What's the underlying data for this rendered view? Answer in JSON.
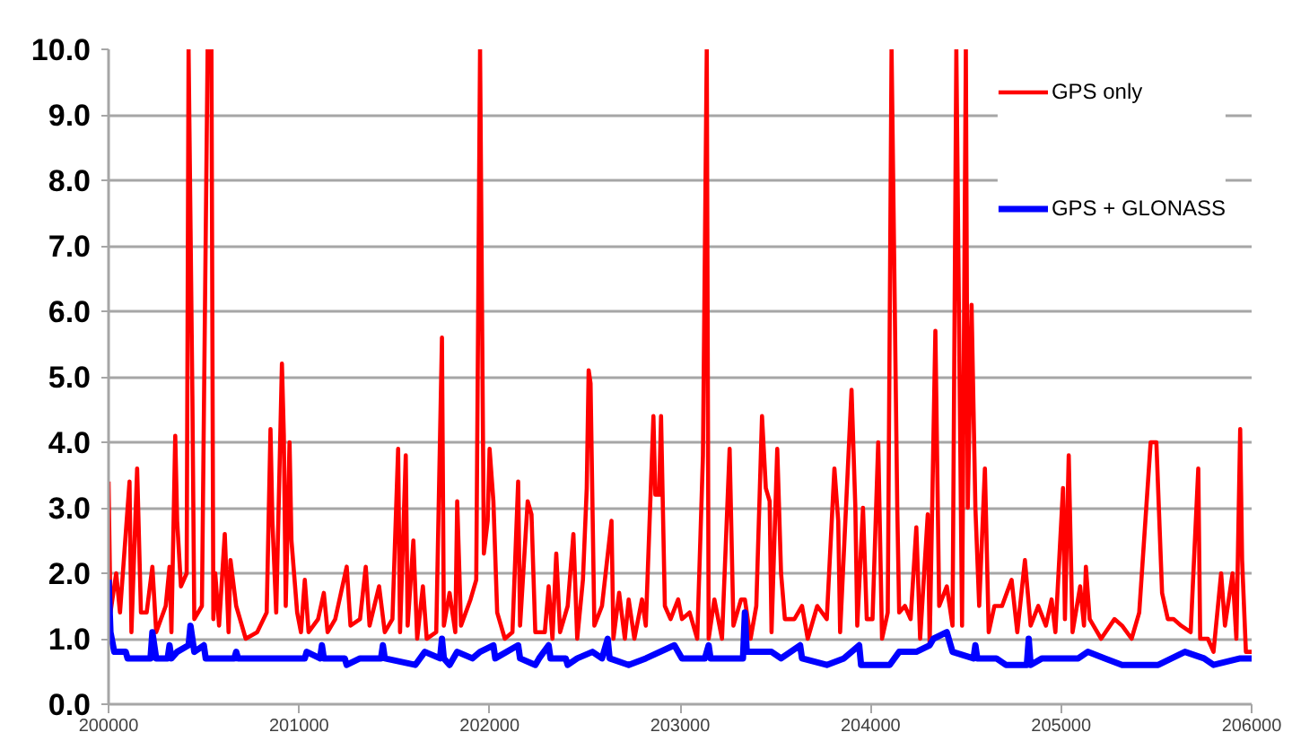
{
  "chart_data": {
    "type": "line",
    "xlim": [
      200000,
      206000
    ],
    "xticks": [
      200000,
      201000,
      202000,
      203000,
      204000,
      205000,
      206000
    ],
    "ylim": [
      0,
      10
    ],
    "yticks": [
      {
        "value": 0,
        "label": "0.0"
      },
      {
        "value": 1,
        "label": "1.0"
      },
      {
        "value": 2,
        "label": "2.0"
      },
      {
        "value": 3,
        "label": "3.0"
      },
      {
        "value": 4,
        "label": "4.0"
      },
      {
        "value": 5,
        "label": "5.0"
      },
      {
        "value": 6,
        "label": "6.0"
      },
      {
        "value": 7,
        "label": "7.0"
      },
      {
        "value": 8,
        "label": "8.0"
      },
      {
        "value": 9,
        "label": "9.0"
      },
      {
        "value": 10,
        "label": "10.0"
      }
    ],
    "grid": "y",
    "legend": "top right",
    "series": [
      {
        "name": "GPS only",
        "color": "#ff0000",
        "x": [
          200000,
          200010,
          200040,
          200060,
          200110,
          200120,
          200150,
          200170,
          200200,
          200230,
          200250,
          200300,
          200320,
          200330,
          200350,
          200360,
          200380,
          200410,
          200420,
          200440,
          200450,
          200490,
          200520,
          200540,
          200550,
          200560,
          200580,
          200610,
          200630,
          200640,
          200670,
          200720,
          200780,
          200830,
          200850,
          200860,
          200880,
          200910,
          200920,
          200930,
          200950,
          200960,
          200990,
          201010,
          201030,
          201050,
          201100,
          201130,
          201150,
          201190,
          201250,
          201270,
          201320,
          201350,
          201370,
          201420,
          201450,
          201490,
          201520,
          201530,
          201560,
          201570,
          201600,
          201620,
          201650,
          201670,
          201720,
          201750,
          201760,
          201790,
          201820,
          201830,
          201850,
          201900,
          201930,
          201950,
          201970,
          201990,
          202000,
          202020,
          202040,
          202080,
          202120,
          202150,
          202160,
          202200,
          202220,
          202240,
          202290,
          202310,
          202330,
          202350,
          202370,
          202410,
          202440,
          202460,
          202490,
          202510,
          202520,
          202530,
          202550,
          202590,
          202640,
          202650,
          202680,
          202710,
          202730,
          202760,
          202800,
          202820,
          202860,
          202870,
          202890,
          202900,
          202920,
          202950,
          202990,
          203010,
          203050,
          203090,
          203120,
          203140,
          203150,
          203180,
          203220,
          203260,
          203280,
          203320,
          203340,
          203370,
          203400,
          203430,
          203450,
          203470,
          203480,
          203510,
          203530,
          203550,
          203600,
          203640,
          203670,
          203720,
          203770,
          203810,
          203830,
          203840,
          203900,
          203920,
          203930,
          203960,
          203980,
          204010,
          204040,
          204060,
          204090,
          204110,
          204140,
          204150,
          204180,
          204210,
          204240,
          204260,
          204300,
          204310,
          204340,
          204360,
          204400,
          204430,
          204450,
          204480,
          204500,
          204510,
          204530,
          204550,
          204570,
          204600,
          204620,
          204650,
          204690,
          204740,
          204770,
          204810,
          204840,
          204880,
          204920,
          204950,
          204970,
          205010,
          205020,
          205040,
          205060,
          205100,
          205120,
          205130,
          205150,
          205210,
          205280,
          205320,
          205370,
          205410,
          205470,
          205500,
          205530,
          205560,
          205590,
          205630,
          205680,
          205720,
          205730,
          205770,
          205800,
          205840,
          205860,
          205900,
          205920,
          205940,
          205950,
          205970,
          206000
        ],
        "values": [
          3.4,
          1.4,
          2.0,
          1.4,
          3.4,
          1.1,
          3.6,
          1.4,
          1.4,
          2.1,
          1.1,
          1.5,
          2.1,
          1.1,
          4.1,
          2.8,
          1.8,
          2.0,
          10.0,
          4.7,
          1.3,
          1.5,
          10.0,
          10.0,
          1.3,
          2.0,
          1.2,
          2.6,
          1.1,
          2.2,
          1.5,
          1.0,
          1.1,
          1.4,
          4.2,
          2.8,
          1.4,
          5.2,
          4.1,
          1.5,
          4.0,
          2.5,
          1.4,
          1.1,
          1.9,
          1.1,
          1.3,
          1.7,
          1.1,
          1.3,
          2.1,
          1.2,
          1.3,
          2.1,
          1.2,
          1.8,
          1.1,
          1.3,
          3.9,
          1.1,
          3.8,
          1.2,
          2.5,
          1.0,
          1.8,
          1.0,
          1.1,
          5.6,
          1.2,
          1.7,
          1.1,
          3.1,
          1.2,
          1.6,
          1.9,
          10.0,
          2.3,
          2.8,
          3.9,
          3.1,
          1.4,
          1.0,
          1.1,
          3.4,
          1.2,
          3.1,
          2.9,
          1.1,
          1.1,
          1.8,
          1.0,
          2.3,
          1.1,
          1.5,
          2.6,
          1.0,
          1.9,
          3.3,
          5.1,
          4.9,
          1.2,
          1.5,
          2.8,
          1.0,
          1.7,
          1.0,
          1.6,
          1.0,
          1.6,
          1.2,
          4.4,
          3.2,
          3.2,
          4.4,
          1.5,
          1.3,
          1.6,
          1.3,
          1.4,
          1.0,
          3.8,
          10.0,
          1.0,
          1.6,
          1.0,
          3.9,
          1.2,
          1.6,
          1.6,
          1.0,
          1.5,
          4.4,
          3.3,
          3.1,
          1.1,
          3.9,
          2.0,
          1.3,
          1.3,
          1.5,
          1.0,
          1.5,
          1.3,
          3.6,
          2.8,
          1.1,
          4.8,
          3.0,
          1.2,
          3.0,
          1.3,
          1.3,
          4.0,
          1.0,
          1.4,
          10.0,
          3.0,
          1.4,
          1.5,
          1.3,
          2.7,
          1.0,
          2.9,
          0.9,
          5.7,
          1.5,
          1.8,
          1.2,
          10.0,
          1.2,
          10.0,
          3.0,
          6.1,
          3.0,
          1.5,
          3.6,
          1.1,
          1.5,
          1.5,
          1.9,
          1.1,
          2.2,
          1.2,
          1.5,
          1.2,
          1.6,
          1.1,
          3.3,
          1.3,
          3.8,
          1.1,
          1.8,
          1.2,
          2.1,
          1.3,
          1.0,
          1.3,
          1.2,
          1.0,
          1.4,
          4.0,
          4.0,
          1.7,
          1.3,
          1.3,
          1.2,
          1.1,
          3.6,
          1.0,
          1.0,
          0.8,
          2.0,
          1.2,
          2.0,
          1.0,
          4.2,
          2.2,
          0.8,
          0.8
        ]
      },
      {
        "name": "GPS + GLONASS",
        "color": "#0000ff",
        "x": [
          200000,
          200010,
          200030,
          200090,
          200100,
          200220,
          200230,
          200250,
          200310,
          200320,
          200330,
          200360,
          200420,
          200430,
          200450,
          200500,
          200510,
          200660,
          200670,
          200680,
          201030,
          201040,
          201110,
          201120,
          201130,
          201240,
          201250,
          201320,
          201430,
          201440,
          201450,
          201610,
          201660,
          201740,
          201750,
          201760,
          201790,
          201830,
          201910,
          201950,
          202020,
          202030,
          202150,
          202160,
          202240,
          202260,
          202310,
          202320,
          202400,
          202410,
          202460,
          202540,
          202590,
          202620,
          202630,
          202730,
          202820,
          202970,
          203010,
          203130,
          203150,
          203160,
          203330,
          203340,
          203350,
          203480,
          203530,
          203630,
          203640,
          203770,
          203860,
          203940,
          203950,
          204100,
          204150,
          204240,
          204310,
          204330,
          204400,
          204430,
          204540,
          204550,
          204560,
          204660,
          204710,
          204820,
          204830,
          204840,
          204900,
          205090,
          205140,
          205230,
          205320,
          205510,
          205650,
          205750,
          205800,
          205940,
          206000
        ],
        "values": [
          1.9,
          1.1,
          0.8,
          0.8,
          0.7,
          0.7,
          1.1,
          0.7,
          0.7,
          0.9,
          0.7,
          0.8,
          0.9,
          1.2,
          0.8,
          0.9,
          0.7,
          0.7,
          0.8,
          0.7,
          0.7,
          0.8,
          0.7,
          0.9,
          0.7,
          0.7,
          0.6,
          0.7,
          0.7,
          0.9,
          0.7,
          0.6,
          0.8,
          0.7,
          1.0,
          0.7,
          0.6,
          0.8,
          0.7,
          0.8,
          0.9,
          0.7,
          0.9,
          0.7,
          0.6,
          0.7,
          0.9,
          0.7,
          0.7,
          0.6,
          0.7,
          0.8,
          0.7,
          1.0,
          0.7,
          0.6,
          0.7,
          0.9,
          0.7,
          0.7,
          0.9,
          0.7,
          0.7,
          1.4,
          0.8,
          0.8,
          0.7,
          0.9,
          0.7,
          0.6,
          0.7,
          0.9,
          0.6,
          0.6,
          0.8,
          0.8,
          0.9,
          1.0,
          1.1,
          0.8,
          0.7,
          0.9,
          0.7,
          0.7,
          0.6,
          0.6,
          1.0,
          0.6,
          0.7,
          0.7,
          0.8,
          0.7,
          0.6,
          0.6,
          0.8,
          0.7,
          0.6,
          0.7,
          0.7
        ]
      }
    ]
  }
}
